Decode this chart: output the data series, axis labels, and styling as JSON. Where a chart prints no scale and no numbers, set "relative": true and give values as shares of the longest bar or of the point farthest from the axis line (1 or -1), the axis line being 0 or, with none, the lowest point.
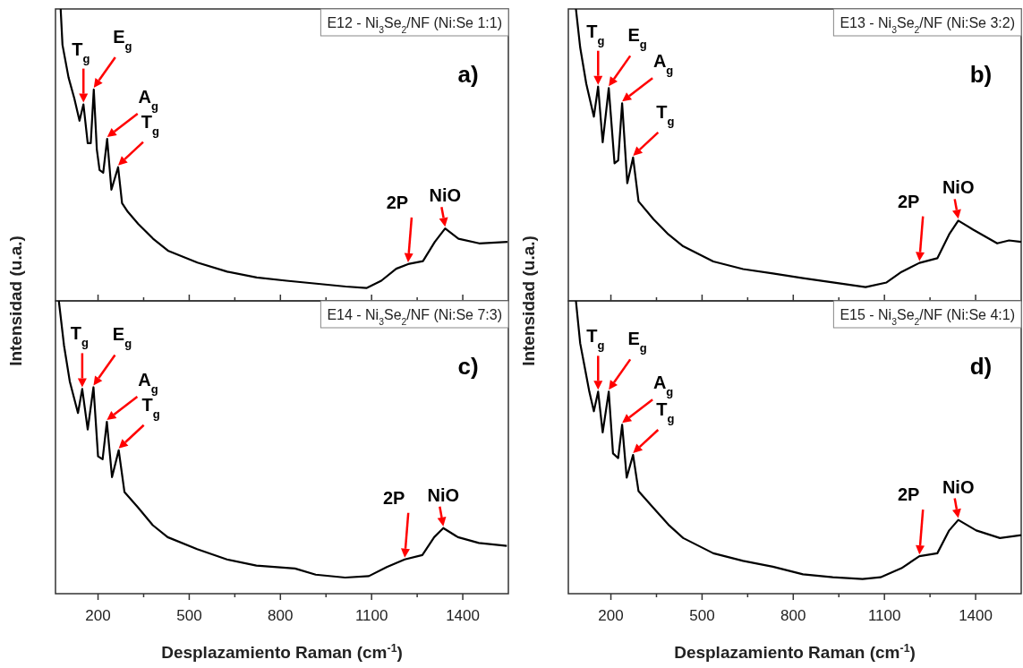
{
  "chart_data": [
    {
      "type": "line",
      "title": "E12 - Ni$_{3}$Se$_{2}$/NF (Ni:Se 1:1)",
      "ylabel": "Intensidad (u.a.)",
      "relative": true,
      "tick_labels": false,
      "xlim": [
        60,
        1550
      ],
      "xticks": [
        200,
        {
          "value": 350,
          "label": null
        },
        500,
        {
          "value": 650,
          "label": null
        },
        800,
        {
          "value": 950,
          "label": null
        },
        1100,
        {
          "value": 1250,
          "label": null
        },
        1400
      ],
      "series": [
        {
          "color": "#000000",
          "x": [
            77,
            83,
            103,
            122,
            139,
            152,
            166,
            176,
            186,
            196,
            205,
            217,
            230,
            244,
            266,
            279,
            298,
            332,
            381,
            430,
            527,
            625,
            722,
            820,
            918,
            1015,
            1083,
            1132,
            1181,
            1220,
            1269,
            1308,
            1342,
            1386,
            1454,
            1547
          ],
          "values": [
            1.0,
            0.877,
            0.765,
            0.693,
            0.617,
            0.673,
            0.54,
            0.54,
            0.724,
            0.519,
            0.448,
            0.439,
            0.555,
            0.381,
            0.458,
            0.335,
            0.305,
            0.264,
            0.213,
            0.172,
            0.131,
            0.1,
            0.08,
            0.069,
            0.059,
            0.049,
            0.044,
            0.069,
            0.11,
            0.126,
            0.136,
            0.202,
            0.248,
            0.213,
            0.197,
            0.202
          ]
        }
      ],
      "annotations": [
        {
          "text": "T$_{g}$",
          "x": 152,
          "y": 0.673
        },
        {
          "text": "E$_{g}$",
          "x": 186,
          "y": 0.724
        },
        {
          "text": "A$_{g}$",
          "x": 230,
          "y": 0.555
        },
        {
          "text": "T$_{g}$",
          "x": 266,
          "y": 0.458
        },
        {
          "text": "2P",
          "x": 1220,
          "y": 0.126
        },
        {
          "text": "NiO",
          "x": 1342,
          "y": 0.248
        },
        "a)"
      ]
    },
    {
      "type": "line",
      "title": "E13 - Ni$_{3}$Se$_{2}$/NF (Ni:Se 3:2)",
      "ylabel": "Intensidad (u.a.)",
      "relative": true,
      "tick_labels": false,
      "xlim": [
        60,
        1550
      ],
      "xticks": [
        200,
        {
          "value": 350,
          "label": null
        },
        500,
        {
          "value": 650,
          "label": null
        },
        800,
        {
          "value": 950,
          "label": null
        },
        1100,
        {
          "value": 1250,
          "label": null
        },
        1400
      ],
      "series": [
        {
          "color": "#000000",
          "x": [
            85,
            99,
            119,
            144,
            158,
            173,
            193,
            212,
            224,
            237,
            254,
            273,
            291,
            340,
            389,
            438,
            537,
            635,
            733,
            832,
            930,
            1038,
            1107,
            1156,
            1215,
            1274,
            1313,
            1343,
            1392,
            1471,
            1510,
            1550
          ],
          "values": [
            1.0,
            0.868,
            0.744,
            0.631,
            0.734,
            0.543,
            0.729,
            0.471,
            0.481,
            0.677,
            0.403,
            0.491,
            0.341,
            0.28,
            0.228,
            0.187,
            0.135,
            0.109,
            0.094,
            0.078,
            0.063,
            0.047,
            0.063,
            0.099,
            0.13,
            0.146,
            0.228,
            0.275,
            0.244,
            0.197,
            0.207,
            0.202
          ]
        }
      ],
      "annotations": [
        {
          "text": "T$_{g}$",
          "x": 158,
          "y": 0.734
        },
        {
          "text": "E$_{g}$",
          "x": 193,
          "y": 0.729
        },
        {
          "text": "A$_{g}$",
          "x": 237,
          "y": 0.677
        },
        {
          "text": "T$_{g}$",
          "x": 273,
          "y": 0.491
        },
        {
          "text": "2P",
          "x": 1215,
          "y": 0.13
        },
        {
          "text": "NiO",
          "x": 1343,
          "y": 0.275
        },
        "b)"
      ]
    },
    {
      "type": "line",
      "title": "E14 - Ni$_{3}$Se$_{2}$/NF (Ni:Se 7:3)",
      "xlabel": "Desplazamiento Raman (cm$^{-1}$)",
      "relative": true,
      "tick_labels": "x",
      "xlim": [
        60,
        1550
      ],
      "xticks": [
        200,
        {
          "value": 350,
          "label": null
        },
        500,
        {
          "value": 650,
          "label": null
        },
        800,
        {
          "value": 950,
          "label": null
        },
        1100,
        {
          "value": 1250,
          "label": null
        },
        1400
      ],
      "series": [
        {
          "color": "#000000",
          "x": [
            71,
            88,
            107,
            134,
            148,
            166,
            185,
            200,
            215,
            229,
            246,
            268,
            287,
            331,
            380,
            429,
            526,
            624,
            721,
            848,
            916,
            1013,
            1091,
            1150,
            1209,
            1267,
            1306,
            1336,
            1384,
            1453,
            1545
          ],
          "values": [
            1.0,
            0.848,
            0.725,
            0.617,
            0.699,
            0.561,
            0.705,
            0.469,
            0.459,
            0.587,
            0.398,
            0.49,
            0.347,
            0.295,
            0.234,
            0.193,
            0.152,
            0.117,
            0.096,
            0.086,
            0.065,
            0.055,
            0.06,
            0.091,
            0.117,
            0.132,
            0.193,
            0.224,
            0.193,
            0.173,
            0.163
          ]
        }
      ],
      "annotations": [
        {
          "text": "T$_{g}$",
          "x": 148,
          "y": 0.699
        },
        {
          "text": "E$_{g}$",
          "x": 185,
          "y": 0.705
        },
        {
          "text": "A$_{g}$",
          "x": 229,
          "y": 0.587
        },
        {
          "text": "T$_{g}$",
          "x": 268,
          "y": 0.49
        },
        {
          "text": "2P",
          "x": 1209,
          "y": 0.117
        },
        {
          "text": "NiO",
          "x": 1336,
          "y": 0.224
        },
        "c)"
      ]
    },
    {
      "type": "line",
      "title": "E15 - Ni$_{3}$Se$_{2}$/NF (Ni:Se 4:1)",
      "xlabel": "Desplazamiento Raman (cm$^{-1}$)",
      "relative": true,
      "tick_labels": "x",
      "xlim": [
        60,
        1550
      ],
      "xticks": [
        200,
        {
          "value": 350,
          "label": null
        },
        500,
        {
          "value": 650,
          "label": null
        },
        800,
        {
          "value": 950,
          "label": null
        },
        1100,
        {
          "value": 1250,
          "label": null
        },
        1400
      ],
      "series": [
        {
          "color": "#000000",
          "x": [
            85,
            99,
            114,
            129,
            144,
            158,
            173,
            193,
            207,
            224,
            237,
            252,
            273,
            291,
            340,
            389,
            438,
            537,
            635,
            733,
            832,
            930,
            1028,
            1087,
            1156,
            1215,
            1274,
            1313,
            1343,
            1402,
            1480,
            1550
          ],
          "values": [
            1.0,
            0.855,
            0.773,
            0.69,
            0.623,
            0.69,
            0.551,
            0.69,
            0.479,
            0.463,
            0.577,
            0.396,
            0.474,
            0.35,
            0.293,
            0.236,
            0.19,
            0.138,
            0.112,
            0.092,
            0.066,
            0.056,
            0.05,
            0.056,
            0.087,
            0.128,
            0.138,
            0.216,
            0.252,
            0.216,
            0.19,
            0.2
          ]
        }
      ],
      "annotations": [
        {
          "text": "T$_{g}$",
          "x": 158,
          "y": 0.69
        },
        {
          "text": "E$_{g}$",
          "x": 193,
          "y": 0.69
        },
        {
          "text": "A$_{g}$",
          "x": 237,
          "y": 0.577
        },
        {
          "text": "T$_{g}$",
          "x": 273,
          "y": 0.474
        },
        {
          "text": "2P",
          "x": 1215,
          "y": 0.128
        },
        {
          "text": "NiO",
          "x": 1343,
          "y": 0.252
        },
        "d)"
      ]
    }
  ]
}
